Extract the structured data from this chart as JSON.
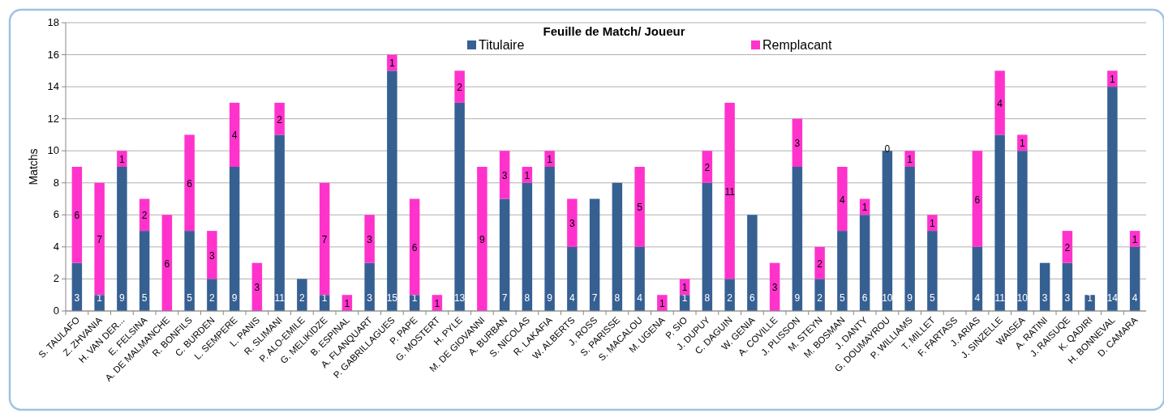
{
  "chart_data": {
    "type": "bar",
    "title": "Feuille de Match/ Joueur",
    "ylabel": "Matchs",
    "stacked": true,
    "categories": [
      "S. TAULAFO",
      "Z. ZHVANIA",
      "H. VAN DER...",
      "E. FELSINA",
      "A. DE MALMANCHE",
      "R. BONFILS",
      "C. BURDEN",
      "L. SEMPERE",
      "L. PANIS",
      "R. SLIMANI",
      "P. ALO-EMILE",
      "G. MELIKIDZE",
      "B. ESPINAL",
      "A. FLANQUART",
      "P. GABRILLAGUES",
      "P. PAPE",
      "G. MOSTERT",
      "H. PYLE",
      "M. DE GIOVANNI",
      "A. BURBAN",
      "S. NICOLAS",
      "R. LAKAFIA",
      "W. ALBERTS",
      "J. ROSS",
      "S. PARISSE",
      "S. MACALOU",
      "M. UGENA",
      "P. SIO",
      "J. DUPUY",
      "C. DAGUIN",
      "W. GENIA",
      "A. COVILLE",
      "J. PLISSON",
      "M. STEYN",
      "M. BOSMAN",
      "J. DANTY",
      "G. DOUMAYROU",
      "P. WILLIAMS",
      "T. MILLET",
      "F. FARTASS",
      "J. ARIAS",
      "J. SINZELLE",
      "WAISEA",
      "A. RATINI",
      "J. RAISUQE",
      "K. QADIRI",
      "H. BONNEVAL",
      "D. CAMARA"
    ],
    "series": [
      {
        "name": "Titulaire",
        "color": "#366092",
        "values": [
          3,
          1,
          9,
          5,
          0,
          5,
          2,
          9,
          0,
          11,
          2,
          1,
          0,
          3,
          15,
          1,
          0,
          13,
          0,
          7,
          8,
          9,
          4,
          7,
          8,
          4,
          0,
          1,
          8,
          2,
          6,
          0,
          9,
          2,
          5,
          6,
          10,
          9,
          5,
          0,
          4,
          11,
          10,
          3,
          3,
          1,
          14,
          4
        ],
        "value_labels": [
          "3",
          "1",
          "9",
          "5",
          null,
          "5",
          "2",
          "9",
          null,
          "11",
          "2",
          "1",
          null,
          "3",
          "15",
          "1",
          null,
          "13",
          null,
          "7",
          "8",
          "9",
          "4",
          "7",
          "8",
          "4",
          null,
          "1",
          "8",
          "2",
          "6",
          null,
          "9",
          "2",
          "5",
          "6",
          "10",
          "9",
          "5",
          null,
          "4",
          "11",
          "10",
          "3",
          "3",
          "1",
          "14",
          "4"
        ]
      },
      {
        "name": "Remplacant",
        "color": "#ff33cc",
        "values": [
          6,
          7,
          1,
          2,
          6,
          6,
          3,
          4,
          3,
          2,
          0,
          7,
          1,
          3,
          1,
          6,
          1,
          2,
          9,
          3,
          1,
          1,
          3,
          0,
          0,
          5,
          1,
          1,
          2,
          11,
          0,
          3,
          3,
          2,
          4,
          1,
          0,
          1,
          1,
          0,
          6,
          4,
          1,
          0,
          2,
          0,
          1,
          1
        ],
        "value_labels": [
          "6",
          "7",
          "1",
          "2",
          "6",
          "6",
          "3",
          "4",
          "3",
          "2",
          null,
          "7",
          "1",
          "3",
          "1",
          "6",
          "1",
          "2",
          "9",
          "3",
          "1",
          "1",
          "3",
          null,
          null,
          "5",
          "1",
          "1",
          "2",
          "11",
          null,
          "3",
          "3",
          "2",
          "4",
          "1",
          "0",
          "1",
          "1",
          null,
          "6",
          "4",
          "1",
          null,
          "2",
          null,
          "1",
          "1"
        ]
      }
    ],
    "ylim": [
      0,
      18
    ],
    "yticks": [
      0,
      2,
      4,
      6,
      8,
      10,
      12,
      14,
      16,
      18
    ],
    "grid": "y",
    "legend": "top"
  }
}
